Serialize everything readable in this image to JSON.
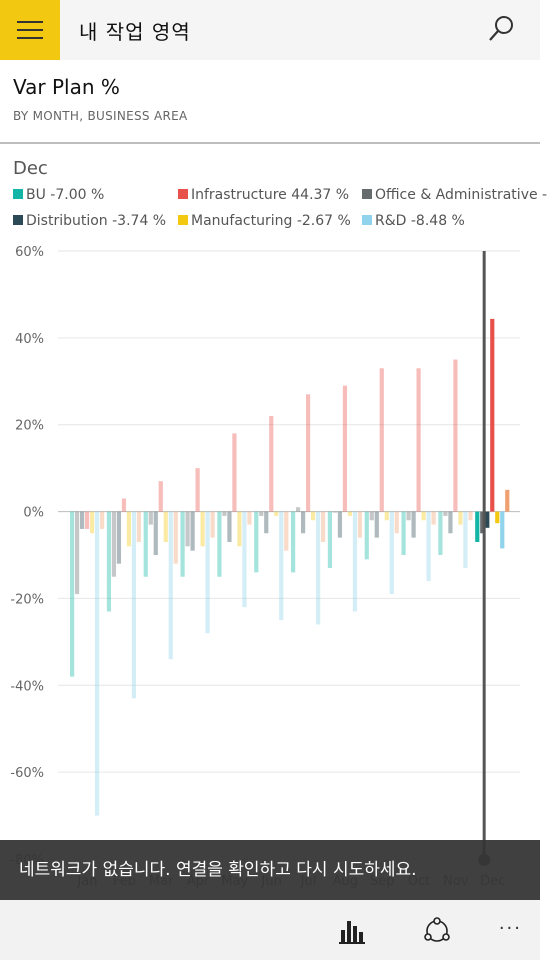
{
  "app": {
    "title": "내 작업 영역"
  },
  "header": {
    "title": "Var Plan %",
    "subtitle": "BY MONTH, BUSINESS AREA"
  },
  "selected_month": "Dec",
  "legend": [
    {
      "label": "BU -7.00 %",
      "color": "#12b5a6"
    },
    {
      "label": "Infrastructure 44.37 %",
      "color": "#e8514a"
    },
    {
      "label": "Office & Administrative -",
      "color": "#666b6e"
    },
    {
      "label": "Distribution -3.74 %",
      "color": "#2b4a55"
    },
    {
      "label": "Manufacturing -2.67 %",
      "color": "#f2c811"
    },
    {
      "label": "R&D -8.48 %",
      "color": "#8fd3ec"
    }
  ],
  "chart_data": {
    "type": "bar",
    "categories": [
      "Jan",
      "Feb",
      "Mar",
      "Apr",
      "May",
      "Jun",
      "Jul",
      "Aug",
      "Sep",
      "Oct",
      "Nov",
      "Dec"
    ],
    "ylim": [
      -80,
      60
    ],
    "yticks": [
      "60%",
      "40%",
      "20%",
      "0%",
      "-20%",
      "-40%",
      "-60%",
      "-80%"
    ],
    "ytick_values": [
      60,
      40,
      20,
      0,
      -20,
      -40,
      -60,
      -80
    ],
    "grid": true,
    "highlight_category": "Dec",
    "series": [
      {
        "name": "BU",
        "color": "#12b5a6",
        "values": [
          -38,
          -23,
          -15,
          -15,
          -15,
          -14,
          -14,
          -13,
          -11,
          -10,
          -10,
          -7
        ]
      },
      {
        "name": "Office & Administrative",
        "color": "#666b6e",
        "values": [
          -19,
          -15,
          -3,
          -8,
          -1,
          -1,
          1,
          0,
          -2,
          -2,
          -1,
          -5
        ]
      },
      {
        "name": "Distribution",
        "color": "#2b4a55",
        "values": [
          -4,
          -12,
          -10,
          -9,
          -7,
          -5,
          -5,
          -6,
          -6,
          -6,
          -5,
          -3.74
        ]
      },
      {
        "name": "Infrastructure",
        "color": "#e8514a",
        "values": [
          -4,
          3,
          7,
          10,
          18,
          22,
          27,
          29,
          33,
          33,
          35,
          44.37
        ]
      },
      {
        "name": "Manufacturing",
        "color": "#f2c811",
        "values": [
          -5,
          -8,
          -7,
          -8,
          -8,
          -1,
          -2,
          -1,
          -2,
          -2,
          -3,
          -2.67
        ]
      },
      {
        "name": "R&D",
        "color": "#8fd3ec",
        "values": [
          -70,
          -43,
          -34,
          -28,
          -22,
          -25,
          -26,
          -23,
          -19,
          -16,
          -13,
          -8.48
        ]
      },
      {
        "name": "",
        "color": "#f0a070",
        "values": [
          -4,
          -7,
          -12,
          -6,
          -3,
          -9,
          -7,
          -6,
          -5,
          -3,
          -2,
          5
        ]
      }
    ]
  },
  "toast": {
    "message": "네트워크가 없습니다. 연결을 확인하고 다시 시도하세요."
  },
  "bottombar": {
    "more_label": "···"
  }
}
